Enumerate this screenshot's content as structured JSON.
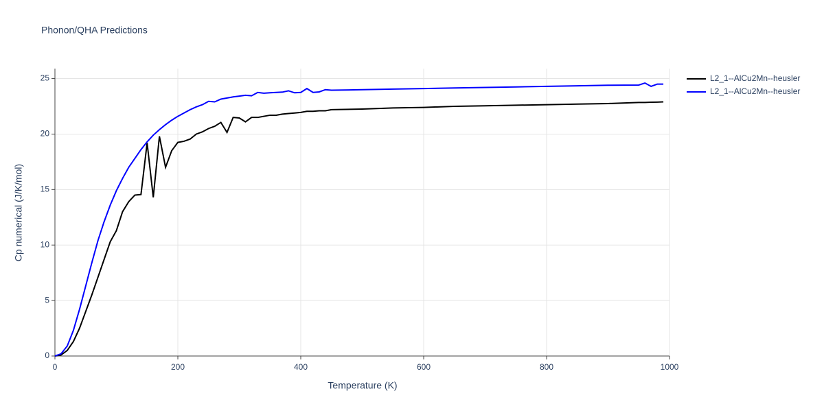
{
  "chart_data": {
    "type": "line",
    "title": "Phonon/QHA Predictions",
    "x_label": "Temperature (K)",
    "y_label": "Cp numerical (J/K/mol)",
    "x": [
      0,
      10,
      20,
      30,
      40,
      50,
      60,
      70,
      80,
      90,
      100,
      110,
      120,
      130,
      140,
      150,
      160,
      170,
      180,
      190,
      200,
      210,
      220,
      230,
      240,
      250,
      260,
      270,
      280,
      290,
      300,
      310,
      320,
      330,
      340,
      350,
      360,
      370,
      380,
      390,
      400,
      410,
      420,
      430,
      440,
      450,
      500,
      550,
      600,
      650,
      700,
      750,
      800,
      850,
      900,
      950,
      960,
      970,
      980,
      990
    ],
    "series": [
      {
        "name": "L2_1--AlCu2Mn--heusler",
        "color": "#000000",
        "values": [
          0,
          0.1,
          0.5,
          1.3,
          2.5,
          4.0,
          5.5,
          7.1,
          8.7,
          10.3,
          11.3,
          13.0,
          13.9,
          14.5,
          14.55,
          19.2,
          14.3,
          19.8,
          17.0,
          18.5,
          19.25,
          19.35,
          19.55,
          20.0,
          20.2,
          20.5,
          20.7,
          21.05,
          20.15,
          21.5,
          21.45,
          21.1,
          21.5,
          21.5,
          21.6,
          21.7,
          21.7,
          21.8,
          21.85,
          21.9,
          21.95,
          22.05,
          22.05,
          22.1,
          22.1,
          22.2,
          22.25,
          22.35,
          22.4,
          22.5,
          22.55,
          22.6,
          22.65,
          22.7,
          22.75,
          22.85,
          22.85,
          22.87,
          22.88,
          22.9
        ]
      },
      {
        "name": "L2_1--AlCu2Mn--heusler",
        "color": "#0000ff",
        "values": [
          0,
          0.2,
          0.9,
          2.3,
          4.2,
          6.3,
          8.4,
          10.4,
          12.1,
          13.6,
          14.9,
          16.0,
          17.0,
          17.8,
          18.6,
          19.3,
          19.9,
          20.4,
          20.85,
          21.25,
          21.6,
          21.9,
          22.2,
          22.45,
          22.65,
          22.95,
          22.9,
          23.15,
          23.25,
          23.35,
          23.42,
          23.5,
          23.45,
          23.75,
          23.68,
          23.72,
          23.75,
          23.78,
          23.9,
          23.72,
          23.75,
          24.1,
          23.75,
          23.8,
          24.0,
          23.95,
          24.0,
          24.05,
          24.1,
          24.15,
          24.2,
          24.25,
          24.3,
          24.35,
          24.4,
          24.42,
          24.6,
          24.3,
          24.5,
          24.5
        ]
      }
    ],
    "xlim": [
      0,
      1000
    ],
    "xticks": [
      0,
      200,
      400,
      600,
      800,
      1000
    ],
    "ylim": [
      0,
      25.9
    ],
    "yticks": [
      0,
      5,
      10,
      15,
      20,
      25
    ],
    "grid": true,
    "legend": "right"
  }
}
